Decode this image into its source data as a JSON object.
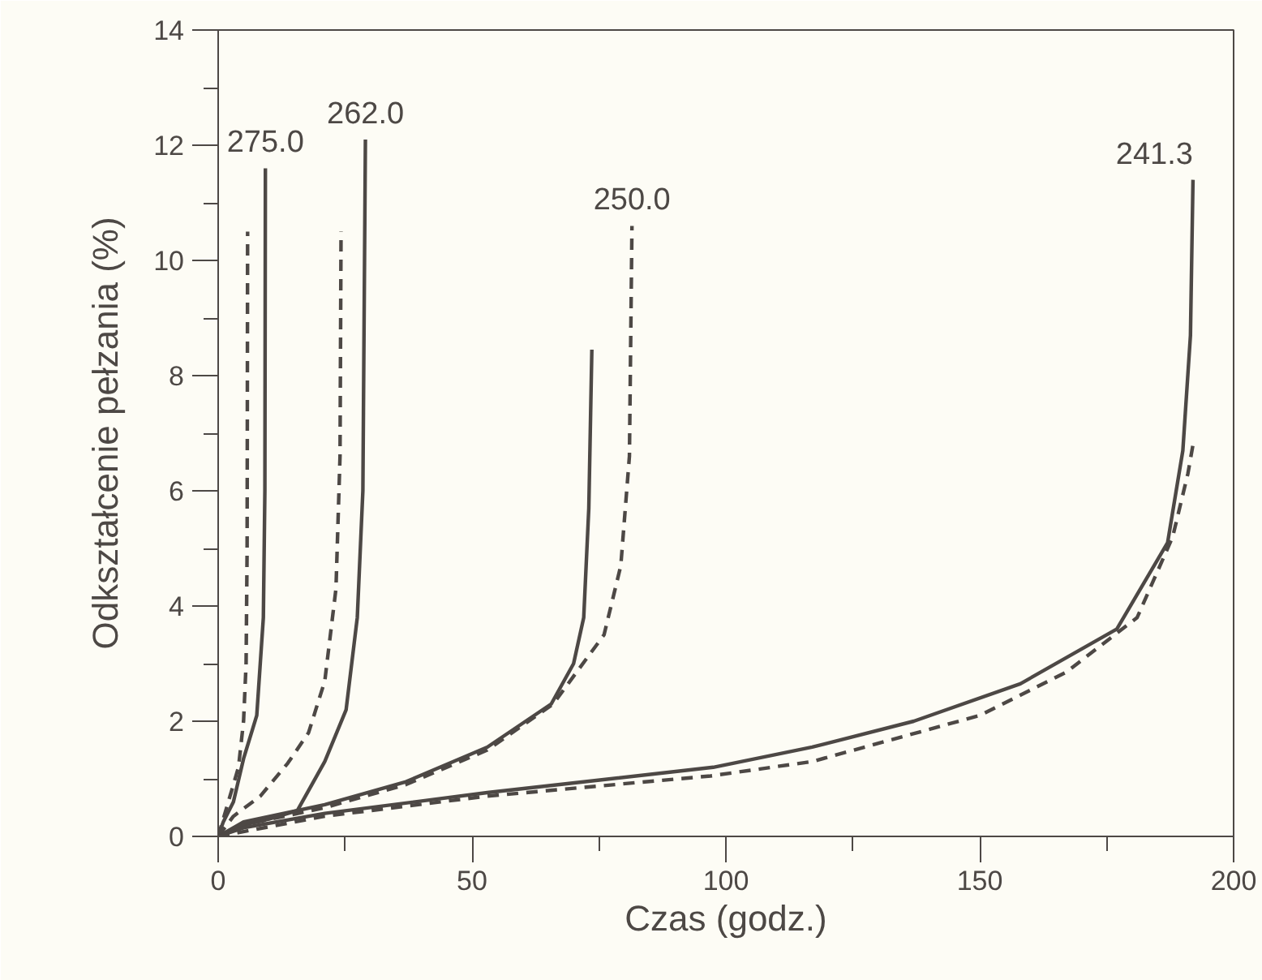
{
  "chart_data": {
    "type": "line",
    "xlabel": "Czas (godz.)",
    "ylabel": "Odkształcenie pełzania (%)",
    "xlim": [
      0,
      200
    ],
    "ylim": [
      0,
      14
    ],
    "xticks": [
      0,
      {
        "value": 25,
        "label": null
      },
      50,
      {
        "value": 75,
        "label": null
      },
      100,
      {
        "value": 125,
        "label": null
      },
      150,
      {
        "value": 175,
        "label": null
      },
      200
    ],
    "yticks": [
      0,
      {
        "value": 1,
        "label": null
      },
      2,
      {
        "value": 3,
        "label": null
      },
      4,
      {
        "value": 5,
        "label": null
      },
      6,
      {
        "value": 7,
        "label": null
      },
      8,
      {
        "value": 9,
        "label": null
      },
      10,
      {
        "value": 11,
        "label": null
      },
      12,
      {
        "value": 13,
        "label": null
      },
      14
    ],
    "grid": false,
    "marker": "none",
    "series": [
      {
        "color": "#4d4845",
        "line_style": "solid",
        "x": [
          0,
          1,
          3,
          5,
          7.6,
          8.9,
          9.2,
          9.3
        ],
        "values": [
          0,
          0.25,
          0.6,
          1.35,
          2.1,
          3.8,
          6,
          11.6
        ]
      },
      {
        "color": "#4d4845",
        "line_style": "dashed",
        "x": [
          0,
          2,
          4,
          5,
          5.5,
          5.7,
          5.8
        ],
        "values": [
          0,
          0.6,
          1.2,
          2,
          3,
          5,
          10.5
        ]
      },
      {
        "color": "#4d4845",
        "line_style": "solid",
        "x": [
          0,
          5,
          10,
          15.6,
          21,
          25.2,
          27.4,
          28.5,
          29
        ],
        "values": [
          0,
          0.2,
          0.3,
          0.45,
          1.3,
          2.2,
          3.8,
          6,
          12.1
        ]
      },
      {
        "color": "#4d4845",
        "line_style": "dashed",
        "x": [
          0,
          3,
          8.3,
          13.7,
          17.8,
          21,
          23.2,
          24,
          24.2
        ],
        "values": [
          0,
          0.35,
          0.7,
          1.27,
          1.8,
          2.7,
          4.3,
          6.6,
          10.5
        ]
      },
      {
        "color": "#4d4845",
        "line_style": "solid",
        "x": [
          0,
          5,
          21,
          37,
          53,
          65.6,
          70,
          72,
          73,
          73.6
        ],
        "values": [
          0,
          0.25,
          0.55,
          0.95,
          1.55,
          2.3,
          3,
          3.8,
          5.7,
          8.45
        ]
      },
      {
        "color": "#4d4845",
        "line_style": "dashed",
        "x": [
          0,
          5,
          21,
          37,
          53,
          66,
          71,
          76,
          79.3,
          81,
          81.5
        ],
        "values": [
          0,
          0.2,
          0.5,
          0.9,
          1.5,
          2.3,
          2.9,
          3.5,
          4.7,
          6.6,
          10.6
        ]
      },
      {
        "color": "#4d4845",
        "line_style": "solid",
        "x": [
          0,
          5,
          21,
          53,
          97.5,
          117,
          137,
          158,
          177,
          187,
          190,
          191.5,
          192
        ],
        "values": [
          0,
          0.15,
          0.4,
          0.76,
          1.2,
          1.55,
          2,
          2.65,
          3.6,
          5.1,
          6.7,
          8.7,
          11.4
        ]
      },
      {
        "color": "#4d4845",
        "line_style": "dashed",
        "x": [
          0,
          21,
          53,
          97,
          117,
          150,
          167,
          181,
          188,
          191,
          192
        ],
        "values": [
          0,
          0.35,
          0.7,
          1.05,
          1.3,
          2.1,
          2.85,
          3.8,
          5.2,
          6.3,
          6.8
        ]
      }
    ],
    "annotations": [
      {
        "text": "275.0",
        "x": 9.3,
        "y": 11.6
      },
      {
        "text": "262.0",
        "x": 29,
        "y": 12.1
      },
      {
        "text": "250.0",
        "x": 81.5,
        "y": 10.6
      },
      {
        "text": "241.3",
        "x": 192,
        "y": 11.4
      }
    ]
  }
}
